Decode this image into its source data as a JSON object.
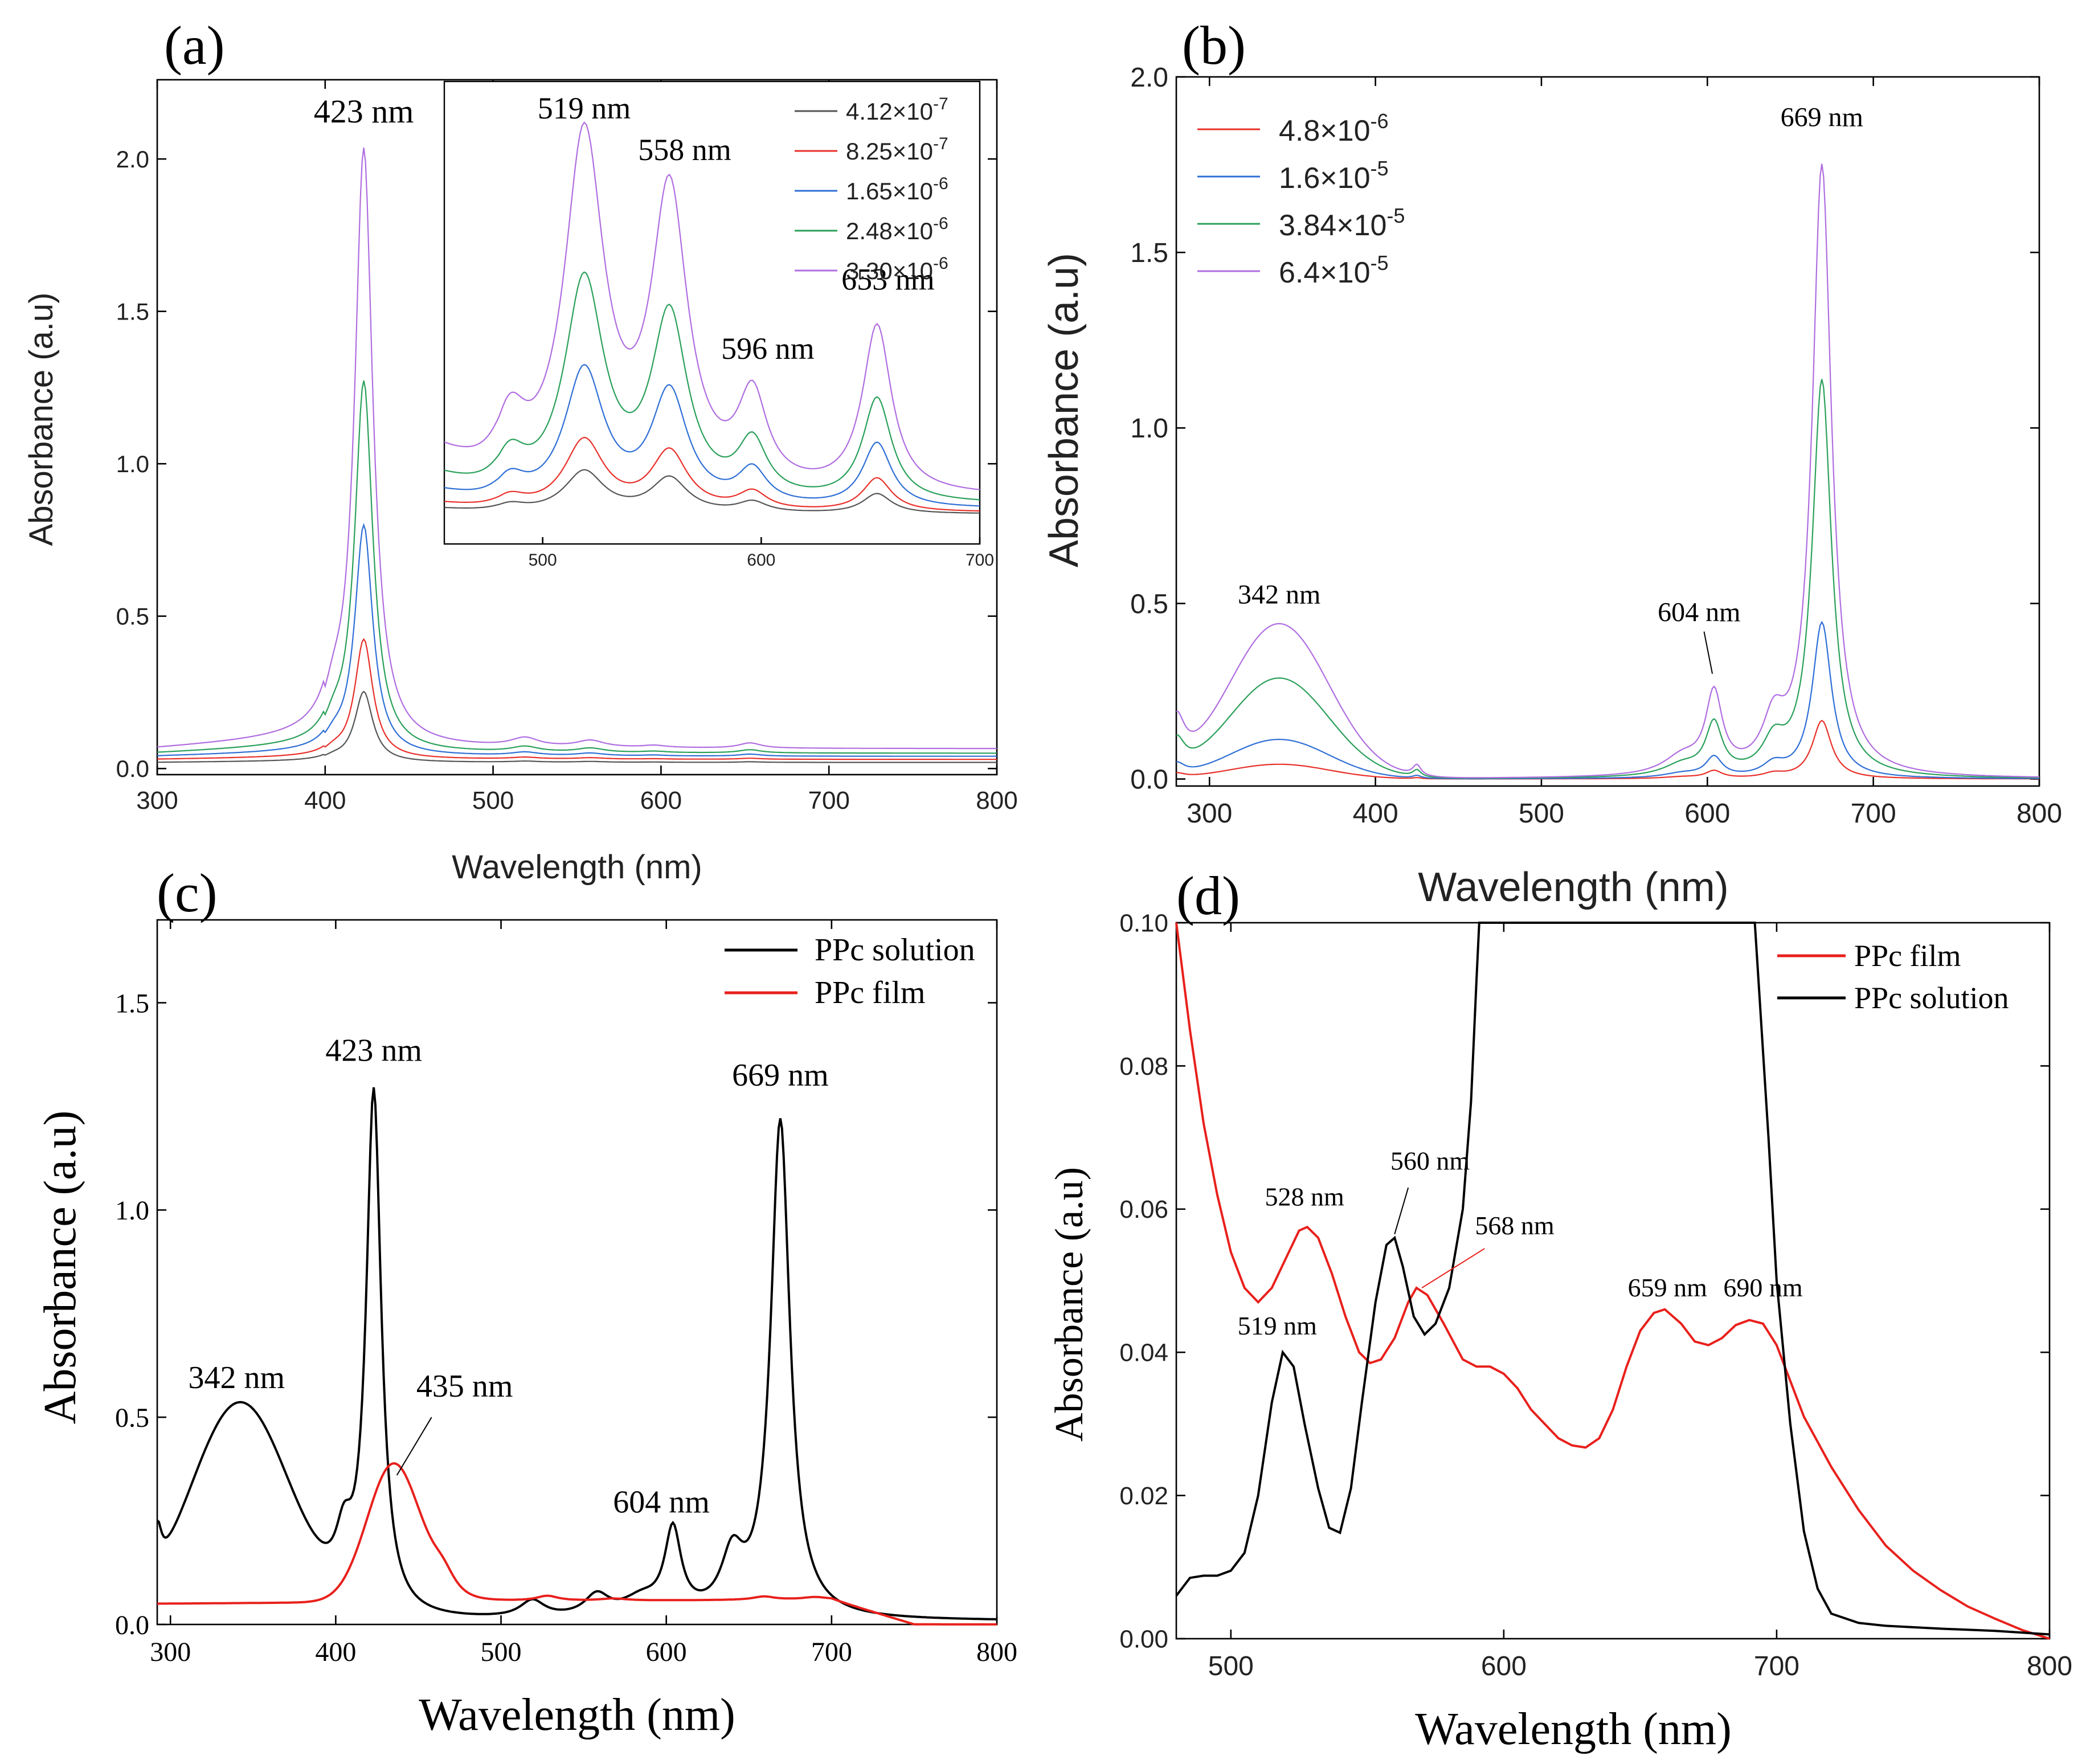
{
  "figure": {
    "panels": [
      {
        "label": "(a)"
      },
      {
        "label": "(b)"
      },
      {
        "label": "(c)"
      },
      {
        "label": "(d)"
      }
    ]
  },
  "chart_data": [
    {
      "id": "a",
      "type": "line",
      "panel_label": "(a)",
      "xlabel": "Wavelength (nm)",
      "ylabel": "Absorbance (a.u)",
      "xlim": [
        300,
        800
      ],
      "ylim": [
        -0.02,
        2.26
      ],
      "xticks": [
        300,
        400,
        500,
        600,
        700,
        800
      ],
      "yticks": [
        0.0,
        0.5,
        1.0,
        1.5,
        2.0
      ],
      "ytick_labels": [
        "0.0",
        "0.5",
        "1.0",
        "1.5",
        "2.0"
      ],
      "font": "sans",
      "legend": "inset-top-right",
      "series": [
        {
          "name": "4.12×10",
          "exp": "-7",
          "color": "#555555",
          "scale": 0.118,
          "base": 0.02
        },
        {
          "name": "8.25×10",
          "exp": "-7",
          "color": "#e8302a",
          "scale": 0.2,
          "base": 0.03
        },
        {
          "name": "1.65×10",
          "exp": "-6",
          "color": "#2f6fd6",
          "scale": 0.385,
          "base": 0.04
        },
        {
          "name": "2.48×10",
          "exp": "-6",
          "color": "#2aa05a",
          "scale": 0.62,
          "base": 0.05
        },
        {
          "name": "3.30×10",
          "exp": "-6",
          "color": "#b06ee0",
          "scale": 1.0,
          "base": 0.065
        }
      ],
      "shape_peaks": [
        {
          "center": 423,
          "height": 1.96,
          "width": 6.5
        },
        {
          "center": 405,
          "height": 0.09,
          "width": 7
        },
        {
          "center": 519,
          "height": 0.028,
          "width": 10
        },
        {
          "center": 558,
          "height": 0.022,
          "width": 10
        },
        {
          "center": 596,
          "height": 0.007,
          "width": 9
        },
        {
          "center": 653,
          "height": 0.017,
          "width": 8
        }
      ],
      "annotations": [
        {
          "text": "423 nm",
          "x": 423,
          "y": 2.12,
          "color": "#000000"
        }
      ],
      "inset": {
        "xlim": [
          455,
          700
        ],
        "ylim": [
          0,
          1.0
        ],
        "xticks": [
          500,
          600,
          700
        ],
        "series_scales": [
          0.118,
          0.2,
          0.385,
          0.62,
          1.0
        ],
        "shape_peaks": [
          {
            "center": 519,
            "height": 0.76,
            "width": 11
          },
          {
            "center": 558,
            "height": 0.63,
            "width": 10
          },
          {
            "center": 596,
            "height": 0.19,
            "width": 8
          },
          {
            "center": 653,
            "height": 0.36,
            "width": 8
          },
          {
            "center": 485,
            "height": 0.14,
            "width": 9
          }
        ],
        "shape_base": 0.1,
        "annotations": [
          {
            "text": "519 nm",
            "x": 519,
            "y": 0.92
          },
          {
            "text": "558 nm",
            "x": 565,
            "y": 0.83
          },
          {
            "text": "596 nm",
            "x": 603,
            "y": 0.4
          },
          {
            "text": "653 nm",
            "x": 658,
            "y": 0.55
          }
        ]
      }
    },
    {
      "id": "b",
      "type": "line",
      "panel_label": "(b)",
      "xlabel": "Wavelength (nm)",
      "ylabel": "Absorbance (a.u)",
      "xlim": [
        280,
        800
      ],
      "ylim": [
        -0.02,
        2.0
      ],
      "xticks": [
        300,
        400,
        500,
        600,
        700,
        800
      ],
      "yticks": [
        0.0,
        0.5,
        1.0,
        1.5,
        2.0
      ],
      "ytick_labels": [
        "0.0",
        "0.5",
        "1.0",
        "1.5",
        "2.0"
      ],
      "font": "sans",
      "legend": "top-left",
      "series": [
        {
          "name": "4.8×10",
          "exp": "-6",
          "color": "#e8302a",
          "scale": 0.095,
          "base": 0.0
        },
        {
          "name": "1.6×10",
          "exp": "-5",
          "color": "#2f6fd6",
          "scale": 0.255,
          "base": 0.0
        },
        {
          "name": "3.84×10",
          "exp": "-5",
          "color": "#2aa05a",
          "scale": 0.65,
          "base": 0.0
        },
        {
          "name": "6.4×10",
          "exp": "-5",
          "color": "#b06ee0",
          "scale": 1.0,
          "base": 0.0
        }
      ],
      "shape_peaks": [
        {
          "center": 669,
          "height": 1.74,
          "width": 7
        },
        {
          "center": 640,
          "height": 0.13,
          "width": 8
        },
        {
          "center": 604,
          "height": 0.22,
          "width": 6
        },
        {
          "center": 585,
          "height": 0.05,
          "width": 14
        },
        {
          "center": 342,
          "height": 0.44,
          "width": 30
        },
        {
          "center": 280,
          "height": 0.14,
          "width": 6
        },
        {
          "center": 425,
          "height": 0.03,
          "width": 3
        }
      ],
      "annotations": [
        {
          "text": "669 nm",
          "x": 669,
          "y": 1.86,
          "color": "#000000"
        },
        {
          "text": "342 nm",
          "x": 342,
          "y": 0.5,
          "color": "#000000"
        },
        {
          "text": "604 nm",
          "x": 595,
          "y": 0.45,
          "color": "#000000"
        }
      ]
    },
    {
      "id": "c",
      "type": "line",
      "panel_label": "(c)",
      "xlabel": "Wavelength (nm)",
      "ylabel": "Absorbance (a.u)",
      "xlim": [
        292,
        800
      ],
      "ylim": [
        0.0,
        1.7
      ],
      "xticks": [
        300,
        400,
        500,
        600,
        700,
        800
      ],
      "yticks": [
        0.0,
        0.5,
        1.0,
        1.5
      ],
      "ytick_labels": [
        "0.0",
        "0.5",
        "1.0",
        "1.5"
      ],
      "font": "serif",
      "legend": "top-right",
      "series": [
        {
          "name": "PPc solution",
          "color": "#000000",
          "peaks": [
            {
              "center": 423,
              "height": 1.26,
              "width": 5.5
            },
            {
              "center": 669,
              "height": 1.2,
              "width": 7
            },
            {
              "center": 342,
              "height": 0.52,
              "width": 30
            },
            {
              "center": 405,
              "height": 0.12,
              "width": 6
            },
            {
              "center": 604,
              "height": 0.2,
              "width": 6
            },
            {
              "center": 640,
              "height": 0.13,
              "width": 8
            },
            {
              "center": 585,
              "height": 0.04,
              "width": 14
            },
            {
              "center": 519,
              "height": 0.04,
              "width": 9
            },
            {
              "center": 558,
              "height": 0.05,
              "width": 9
            },
            {
              "center": 292,
              "height": 0.11,
              "width": 3
            }
          ],
          "base": 0.008
        },
        {
          "name": "PPc film",
          "color": "#e8201c",
          "peaks": [
            {
              "center": 435,
              "height": 0.33,
              "width": 16
            },
            {
              "center": 465,
              "height": 0.05,
              "width": 10
            },
            {
              "center": 528,
              "height": 0.012,
              "width": 8
            },
            {
              "center": 568,
              "height": 0.005,
              "width": 10
            },
            {
              "center": 659,
              "height": 0.008,
              "width": 8
            },
            {
              "center": 690,
              "height": 0.006,
              "width": 9
            }
          ],
          "ramp": [
            0.05,
            0.06
          ],
          "base": 0.0
        }
      ],
      "annotations": [
        {
          "text": "342 nm",
          "x": 340,
          "y": 0.57,
          "color": "#000000"
        },
        {
          "text": "423 nm",
          "x": 423,
          "y": 1.36,
          "color": "#000000"
        },
        {
          "text": "669 nm",
          "x": 669,
          "y": 1.3,
          "color": "#000000"
        },
        {
          "text": "435 nm",
          "x": 478,
          "y": 0.55,
          "color": "#000000"
        },
        {
          "text": "604 nm",
          "x": 597,
          "y": 0.27,
          "color": "#000000"
        }
      ]
    },
    {
      "id": "d",
      "type": "line",
      "panel_label": "(d)",
      "xlabel": "Wavelength (nm)",
      "ylabel": "Absorbance (a.u)",
      "xlim": [
        480,
        800
      ],
      "ylim": [
        0.0,
        0.1
      ],
      "xticks": [
        500,
        600,
        700,
        800
      ],
      "yticks": [
        0.0,
        0.02,
        0.04,
        0.06,
        0.08,
        0.1
      ],
      "ytick_labels": [
        "0.00",
        "0.02",
        "0.04",
        "0.06",
        "0.08",
        "0.10"
      ],
      "font": "sans",
      "legend": "top-right",
      "series": [
        {
          "name": "PPc film",
          "color": "#e8201c",
          "points": [
            [
              480,
              0.1
            ],
            [
              485,
              0.085
            ],
            [
              490,
              0.072
            ],
            [
              495,
              0.062
            ],
            [
              500,
              0.054
            ],
            [
              505,
              0.049
            ],
            [
              510,
              0.047
            ],
            [
              515,
              0.049
            ],
            [
              520,
              0.053
            ],
            [
              525,
              0.057
            ],
            [
              528,
              0.0575
            ],
            [
              532,
              0.056
            ],
            [
              537,
              0.051
            ],
            [
              542,
              0.045
            ],
            [
              547,
              0.04
            ],
            [
              551,
              0.0385
            ],
            [
              555,
              0.039
            ],
            [
              560,
              0.042
            ],
            [
              565,
              0.047
            ],
            [
              568,
              0.049
            ],
            [
              572,
              0.048
            ],
            [
              578,
              0.044
            ],
            [
              585,
              0.039
            ],
            [
              590,
              0.038
            ],
            [
              595,
              0.038
            ],
            [
              600,
              0.037
            ],
            [
              605,
              0.035
            ],
            [
              610,
              0.032
            ],
            [
              615,
              0.03
            ],
            [
              620,
              0.028
            ],
            [
              625,
              0.027
            ],
            [
              630,
              0.0267
            ],
            [
              635,
              0.028
            ],
            [
              640,
              0.032
            ],
            [
              645,
              0.038
            ],
            [
              650,
              0.043
            ],
            [
              655,
              0.0455
            ],
            [
              659,
              0.046
            ],
            [
              665,
              0.044
            ],
            [
              670,
              0.0415
            ],
            [
              675,
              0.041
            ],
            [
              680,
              0.042
            ],
            [
              685,
              0.0438
            ],
            [
              690,
              0.0445
            ],
            [
              695,
              0.044
            ],
            [
              700,
              0.041
            ],
            [
              705,
              0.036
            ],
            [
              710,
              0.031
            ],
            [
              720,
              0.024
            ],
            [
              730,
              0.018
            ],
            [
              740,
              0.013
            ],
            [
              750,
              0.0095
            ],
            [
              760,
              0.0068
            ],
            [
              770,
              0.0045
            ],
            [
              780,
              0.0028
            ],
            [
              790,
              0.0012
            ],
            [
              800,
              0.0
            ]
          ]
        },
        {
          "name": "PPc solution",
          "color": "#000000",
          "points": [
            [
              480,
              0.006
            ],
            [
              485,
              0.0085
            ],
            [
              490,
              0.0088
            ],
            [
              495,
              0.0088
            ],
            [
              500,
              0.0095
            ],
            [
              505,
              0.012
            ],
            [
              510,
              0.02
            ],
            [
              515,
              0.033
            ],
            [
              519,
              0.04
            ],
            [
              523,
              0.038
            ],
            [
              527,
              0.03
            ],
            [
              532,
              0.021
            ],
            [
              536,
              0.0155
            ],
            [
              540,
              0.0148
            ],
            [
              544,
              0.021
            ],
            [
              548,
              0.033
            ],
            [
              553,
              0.047
            ],
            [
              557,
              0.055
            ],
            [
              560,
              0.056
            ],
            [
              563,
              0.052
            ],
            [
              567,
              0.045
            ],
            [
              571,
              0.0425
            ],
            [
              575,
              0.044
            ],
            [
              580,
              0.049
            ],
            [
              585,
              0.06
            ],
            [
              588,
              0.075
            ],
            [
              590,
              0.092
            ],
            [
              591,
              0.1
            ],
            [
              692,
              0.1
            ],
            [
              694,
              0.088
            ],
            [
              697,
              0.07
            ],
            [
              700,
              0.05
            ],
            [
              705,
              0.03
            ],
            [
              710,
              0.015
            ],
            [
              715,
              0.007
            ],
            [
              720,
              0.0035
            ],
            [
              730,
              0.0022
            ],
            [
              740,
              0.0018
            ],
            [
              760,
              0.0014
            ],
            [
              780,
              0.0011
            ],
            [
              800,
              0.0006
            ]
          ]
        }
      ],
      "annotations": [
        {
          "text": "528 nm",
          "x": 527,
          "y": 0.0605,
          "color": "#e8201c"
        },
        {
          "text": "560 nm",
          "x": 573,
          "y": 0.0655,
          "color": "#000000"
        },
        {
          "text": "568 nm",
          "x": 604,
          "y": 0.0565,
          "color": "#e8201c"
        },
        {
          "text": "519 nm",
          "x": 517,
          "y": 0.0425,
          "color": "#000000"
        },
        {
          "text": "659 nm",
          "x": 660,
          "y": 0.0478,
          "color": "#e8201c"
        },
        {
          "text": "690 nm",
          "x": 695,
          "y": 0.0478,
          "color": "#e8201c"
        }
      ]
    }
  ]
}
